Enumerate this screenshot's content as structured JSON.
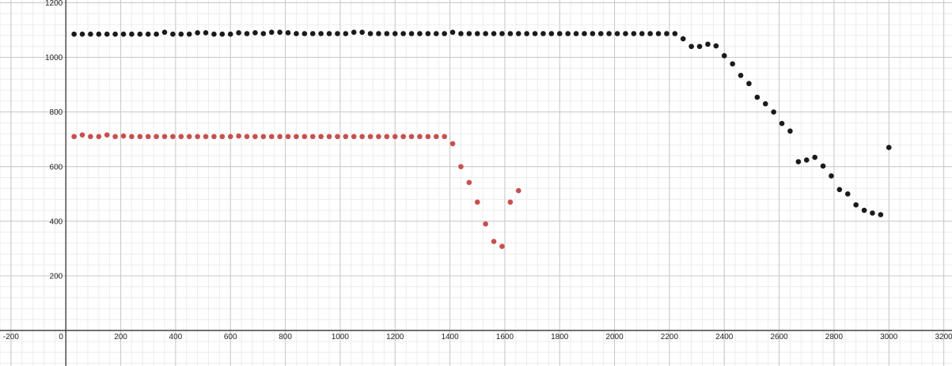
{
  "chart_data": {
    "type": "scatter",
    "title": "",
    "xlabel": "",
    "ylabel": "",
    "xlim": [
      -240,
      3230
    ],
    "ylim": [
      -130,
      1210
    ],
    "x_ticks": [
      -200,
      0,
      200,
      400,
      600,
      800,
      1000,
      1200,
      1400,
      1600,
      1800,
      2000,
      2200,
      2400,
      2600,
      2800,
      3000,
      3200
    ],
    "y_ticks": [
      200,
      400,
      600,
      800,
      1000,
      1200
    ],
    "minor_grid_step": 40,
    "grid": true,
    "legend": "none",
    "series": [
      {
        "color": "#1a1a1a",
        "points": [
          [
            30,
            1085
          ],
          [
            60,
            1085
          ],
          [
            90,
            1085
          ],
          [
            120,
            1085
          ],
          [
            150,
            1085
          ],
          [
            180,
            1085
          ],
          [
            210,
            1085
          ],
          [
            240,
            1085
          ],
          [
            270,
            1085
          ],
          [
            300,
            1085
          ],
          [
            330,
            1085
          ],
          [
            360,
            1092
          ],
          [
            390,
            1085
          ],
          [
            420,
            1085
          ],
          [
            450,
            1085
          ],
          [
            480,
            1090
          ],
          [
            510,
            1090
          ],
          [
            540,
            1085
          ],
          [
            570,
            1085
          ],
          [
            600,
            1085
          ],
          [
            630,
            1090
          ],
          [
            660,
            1087
          ],
          [
            690,
            1090
          ],
          [
            720,
            1087
          ],
          [
            750,
            1092
          ],
          [
            780,
            1092
          ],
          [
            810,
            1090
          ],
          [
            840,
            1087
          ],
          [
            870,
            1087
          ],
          [
            900,
            1087
          ],
          [
            930,
            1087
          ],
          [
            960,
            1087
          ],
          [
            990,
            1087
          ],
          [
            1020,
            1087
          ],
          [
            1050,
            1092
          ],
          [
            1080,
            1092
          ],
          [
            1110,
            1087
          ],
          [
            1140,
            1087
          ],
          [
            1170,
            1087
          ],
          [
            1200,
            1087
          ],
          [
            1230,
            1087
          ],
          [
            1260,
            1087
          ],
          [
            1290,
            1087
          ],
          [
            1320,
            1087
          ],
          [
            1350,
            1087
          ],
          [
            1380,
            1087
          ],
          [
            1410,
            1092
          ],
          [
            1440,
            1087
          ],
          [
            1470,
            1087
          ],
          [
            1500,
            1087
          ],
          [
            1530,
            1087
          ],
          [
            1560,
            1087
          ],
          [
            1590,
            1087
          ],
          [
            1620,
            1087
          ],
          [
            1650,
            1087
          ],
          [
            1680,
            1087
          ],
          [
            1710,
            1087
          ],
          [
            1740,
            1087
          ],
          [
            1770,
            1087
          ],
          [
            1800,
            1087
          ],
          [
            1830,
            1087
          ],
          [
            1860,
            1087
          ],
          [
            1890,
            1087
          ],
          [
            1920,
            1087
          ],
          [
            1950,
            1087
          ],
          [
            1980,
            1087
          ],
          [
            2010,
            1087
          ],
          [
            2040,
            1087
          ],
          [
            2070,
            1087
          ],
          [
            2100,
            1087
          ],
          [
            2130,
            1087
          ],
          [
            2160,
            1087
          ],
          [
            2190,
            1087
          ],
          [
            2220,
            1087
          ],
          [
            2250,
            1068
          ],
          [
            2280,
            1040
          ],
          [
            2310,
            1040
          ],
          [
            2340,
            1048
          ],
          [
            2370,
            1042
          ],
          [
            2400,
            1006
          ],
          [
            2430,
            976
          ],
          [
            2460,
            934
          ],
          [
            2490,
            904
          ],
          [
            2520,
            854
          ],
          [
            2550,
            830
          ],
          [
            2580,
            800
          ],
          [
            2610,
            758
          ],
          [
            2640,
            730
          ],
          [
            2670,
            618
          ],
          [
            2700,
            624
          ],
          [
            2730,
            634
          ],
          [
            2760,
            602
          ],
          [
            2790,
            566
          ],
          [
            2820,
            516
          ],
          [
            2850,
            500
          ],
          [
            2880,
            460
          ],
          [
            2910,
            440
          ],
          [
            2940,
            430
          ],
          [
            2970,
            424
          ],
          [
            3000,
            670
          ]
        ]
      },
      {
        "color": "#c94f4f",
        "points": [
          [
            30,
            710
          ],
          [
            60,
            716
          ],
          [
            90,
            710
          ],
          [
            120,
            710
          ],
          [
            150,
            716
          ],
          [
            180,
            710
          ],
          [
            210,
            712
          ],
          [
            240,
            710
          ],
          [
            270,
            710
          ],
          [
            300,
            710
          ],
          [
            330,
            710
          ],
          [
            360,
            710
          ],
          [
            390,
            710
          ],
          [
            420,
            710
          ],
          [
            450,
            710
          ],
          [
            480,
            710
          ],
          [
            510,
            710
          ],
          [
            540,
            710
          ],
          [
            570,
            710
          ],
          [
            600,
            710
          ],
          [
            630,
            712
          ],
          [
            660,
            710
          ],
          [
            690,
            710
          ],
          [
            720,
            710
          ],
          [
            750,
            710
          ],
          [
            780,
            710
          ],
          [
            810,
            710
          ],
          [
            840,
            710
          ],
          [
            870,
            710
          ],
          [
            900,
            710
          ],
          [
            930,
            710
          ],
          [
            960,
            710
          ],
          [
            990,
            710
          ],
          [
            1020,
            710
          ],
          [
            1050,
            710
          ],
          [
            1080,
            710
          ],
          [
            1110,
            710
          ],
          [
            1140,
            710
          ],
          [
            1170,
            710
          ],
          [
            1200,
            710
          ],
          [
            1230,
            710
          ],
          [
            1260,
            710
          ],
          [
            1290,
            710
          ],
          [
            1320,
            710
          ],
          [
            1350,
            710
          ],
          [
            1380,
            710
          ],
          [
            1410,
            684
          ],
          [
            1440,
            600
          ],
          [
            1470,
            542
          ],
          [
            1500,
            470
          ],
          [
            1530,
            390
          ],
          [
            1560,
            326
          ],
          [
            1590,
            308
          ],
          [
            1620,
            470
          ],
          [
            1650,
            512
          ]
        ]
      }
    ]
  }
}
